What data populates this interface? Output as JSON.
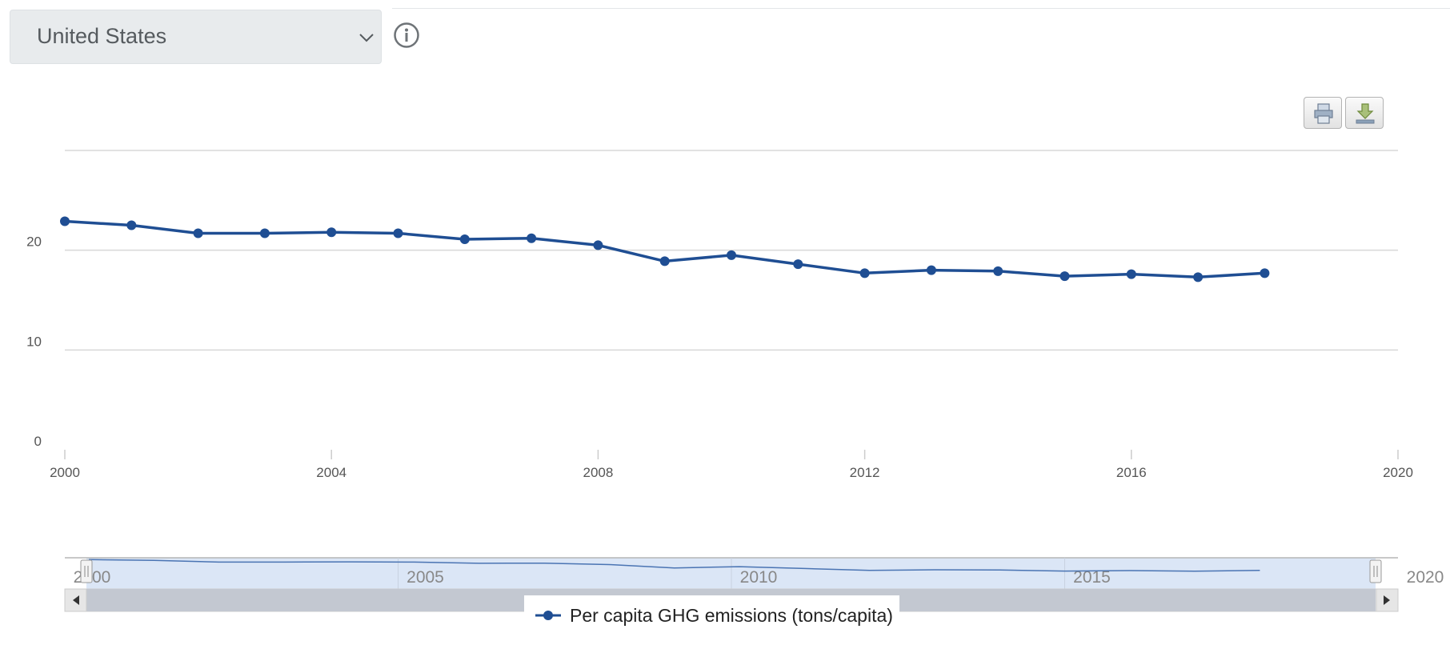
{
  "selector": {
    "value": "United States"
  },
  "icons": {
    "dropdown": "chevron-down-icon",
    "info": "info-icon",
    "print": "print-icon",
    "download": "download-icon",
    "scroll_left": "arrow-left-icon",
    "scroll_right": "arrow-right-icon"
  },
  "colors": {
    "series": "#1f4e93",
    "navigator_fill": "#dbe6f6",
    "grid": "#d8d8d8"
  },
  "legend": {
    "label": "Per capita GHG emissions (tons/capita)"
  },
  "navigator": {
    "labels": [
      "2000",
      "2005",
      "2010",
      "2015",
      "2020"
    ],
    "range": [
      2000,
      2020
    ]
  },
  "chart_data": {
    "type": "line",
    "x": [
      2000,
      2001,
      2002,
      2003,
      2004,
      2005,
      2006,
      2007,
      2008,
      2009,
      2010,
      2011,
      2012,
      2013,
      2014,
      2015,
      2016,
      2017,
      2018
    ],
    "series": [
      {
        "name": "Per capita GHG emissions (tons/capita)",
        "values": [
          22.9,
          22.5,
          21.7,
          21.7,
          21.8,
          21.7,
          21.1,
          21.2,
          20.5,
          18.9,
          19.5,
          18.6,
          17.7,
          18.0,
          17.9,
          17.4,
          17.6,
          17.3,
          17.7
        ]
      }
    ],
    "xlim": [
      2000,
      2020
    ],
    "ylim": [
      0,
      30
    ],
    "x_ticks": [
      "2000",
      "2004",
      "2008",
      "2012",
      "2016",
      "2020"
    ],
    "y_ticks": [
      "0",
      "10",
      "20"
    ],
    "grid": true,
    "legend_position": "bottom-center"
  }
}
